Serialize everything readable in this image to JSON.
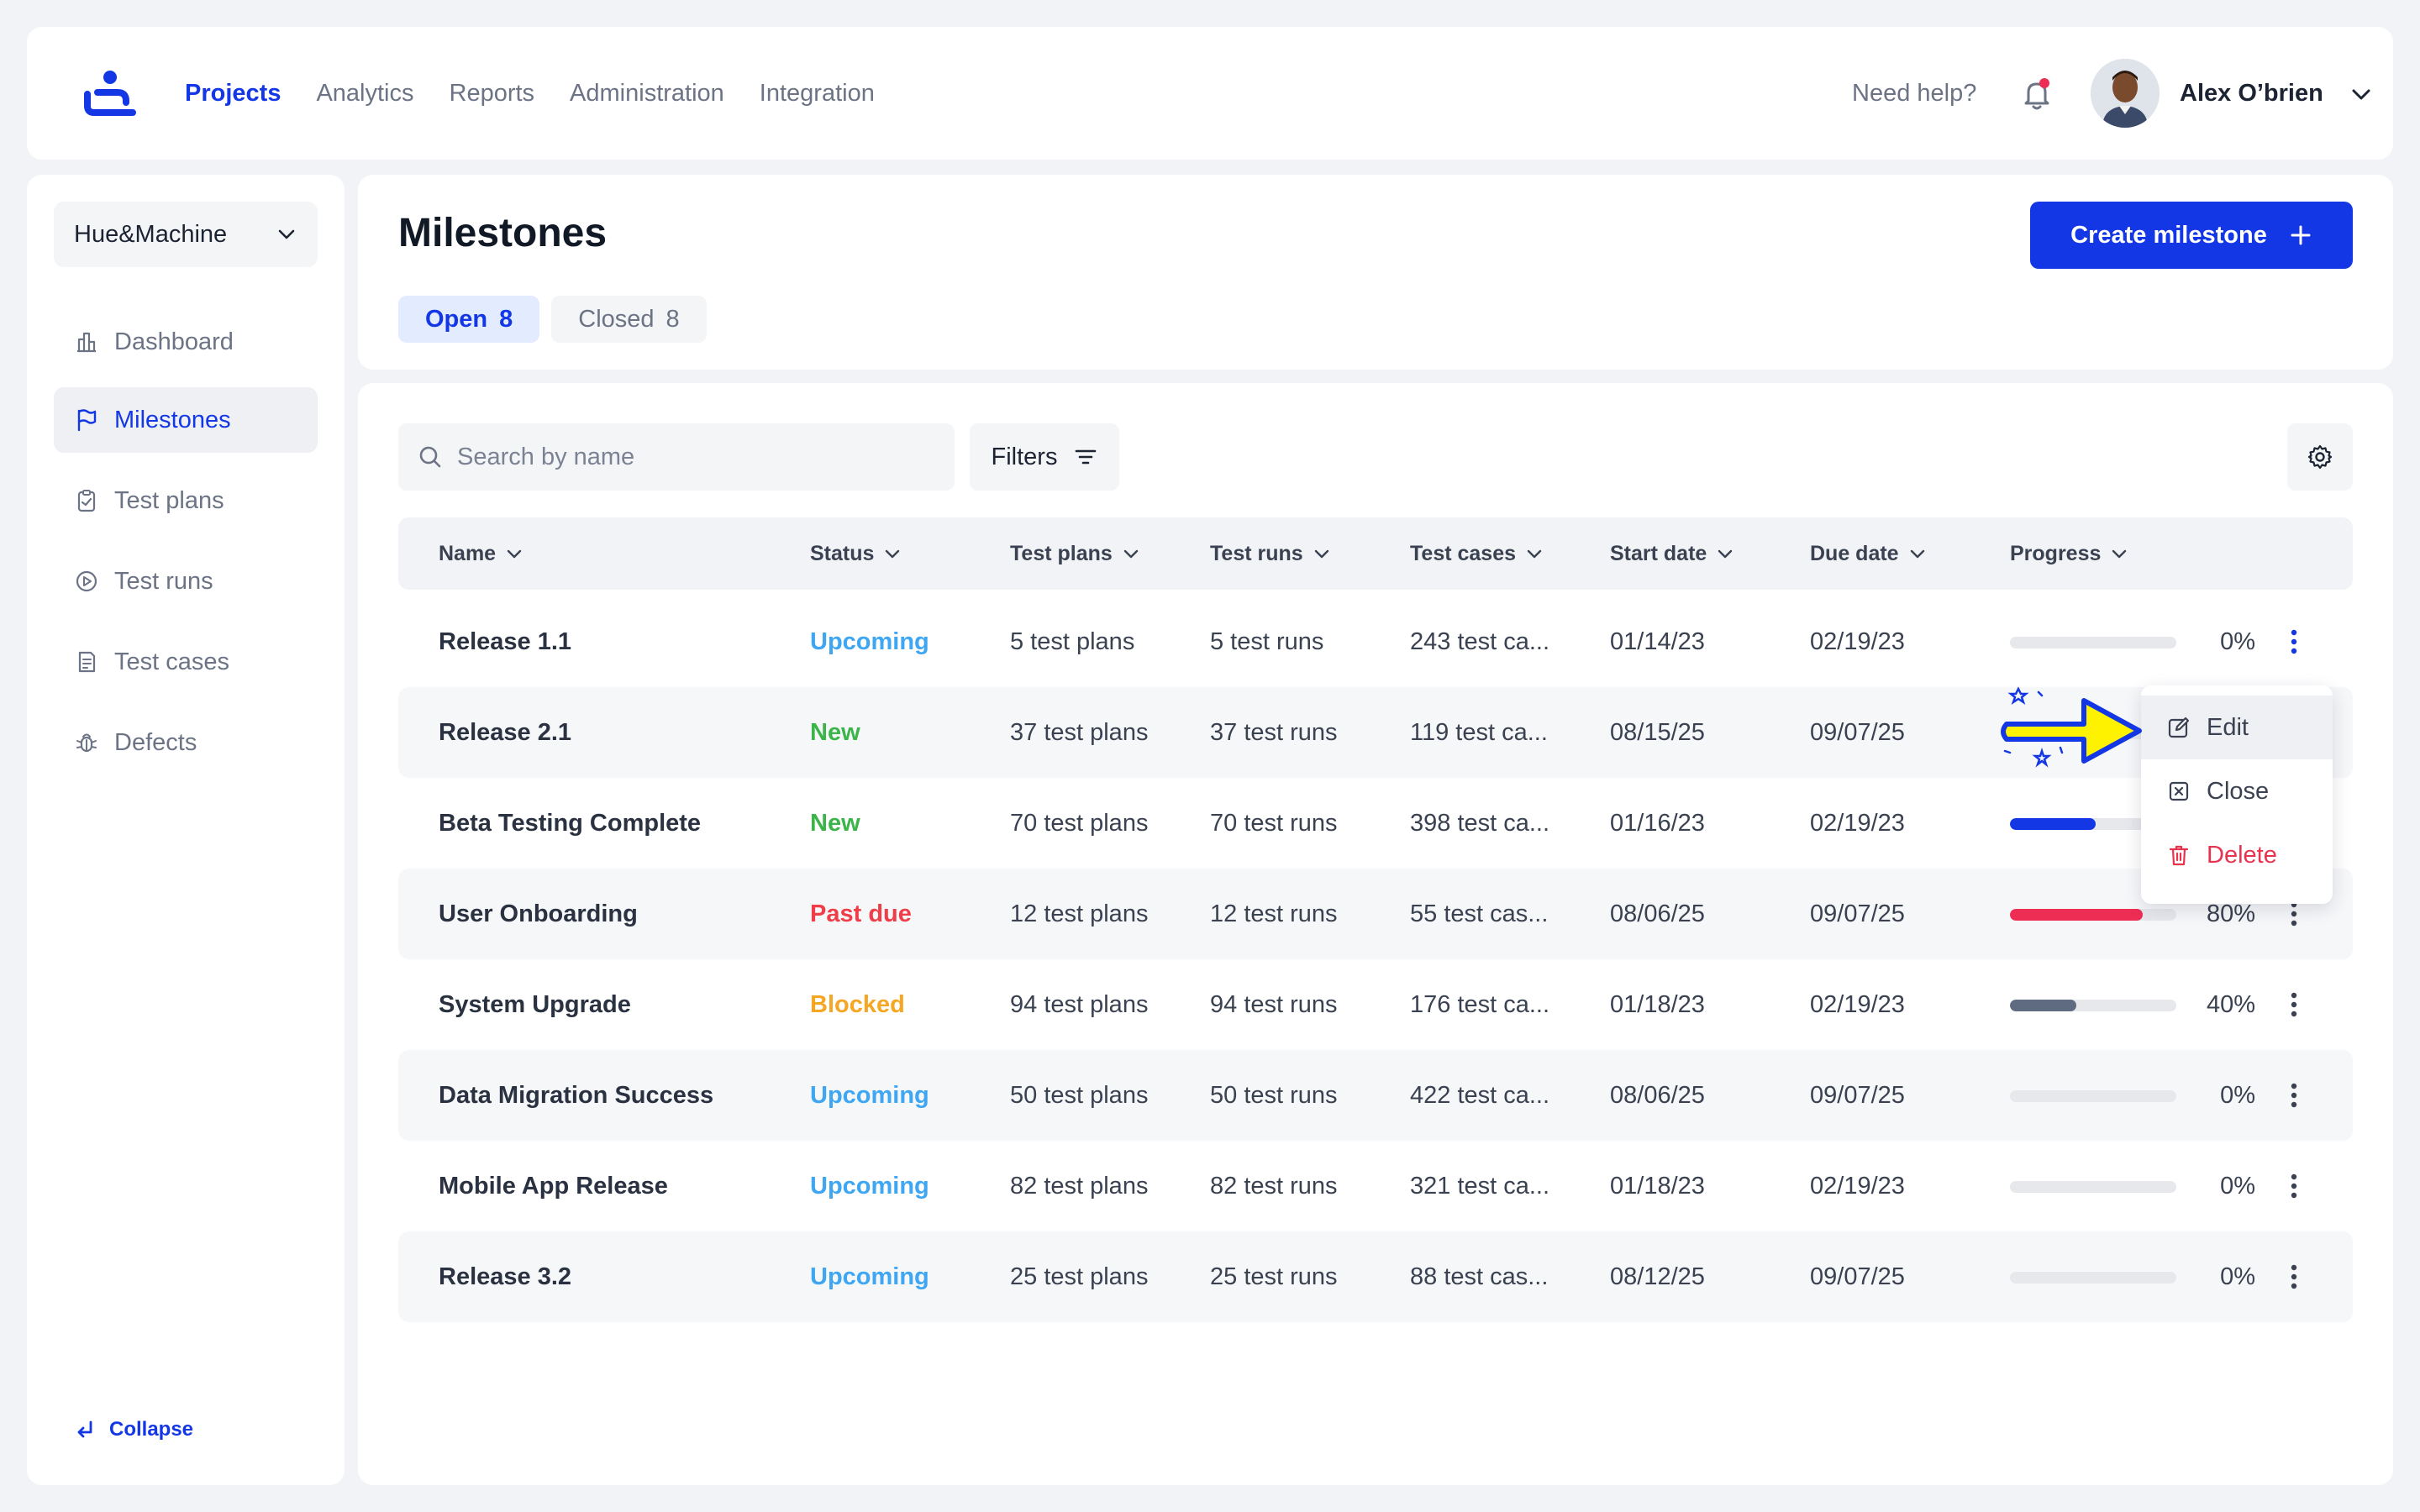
{
  "topbar": {
    "nav": [
      "Projects",
      "Analytics",
      "Reports",
      "Administration",
      "Integration"
    ],
    "active_nav": "Projects",
    "help": "Need help?",
    "user_name": "Alex O’brien"
  },
  "sidebar": {
    "workspace": "Hue&Machine",
    "items": [
      {
        "label": "Dashboard",
        "icon": "dashboard-icon"
      },
      {
        "label": "Milestones",
        "icon": "flag-icon"
      },
      {
        "label": "Test plans",
        "icon": "clipboard-icon"
      },
      {
        "label": "Test runs",
        "icon": "play-circle-icon"
      },
      {
        "label": "Test cases",
        "icon": "document-icon"
      },
      {
        "label": "Defects",
        "icon": "bug-icon"
      }
    ],
    "active_item": "Milestones",
    "collapse": "Collapse"
  },
  "header": {
    "title": "Milestones",
    "tabs": [
      {
        "label": "Open",
        "count": "8"
      },
      {
        "label": "Closed",
        "count": "8"
      }
    ],
    "create_label": "Create milestone"
  },
  "toolbar": {
    "search_placeholder": "Search by name",
    "filters_label": "Filters"
  },
  "table": {
    "columns": [
      "Name",
      "Status",
      "Test plans",
      "Test runs",
      "Test cases",
      "Start date",
      "Due date",
      "Progress"
    ],
    "rows": [
      {
        "name": "Release 1.1",
        "status": "Upcoming",
        "plans": "5 test plans",
        "runs": "5 test runs",
        "cases": "243 test ca...",
        "start": "01/14/23",
        "due": "02/19/23",
        "progress": 0,
        "progress_label": "0%"
      },
      {
        "name": "Release 2.1",
        "status": "New",
        "plans": "37 test plans",
        "runs": "37 test runs",
        "cases": "119 test ca...",
        "start": "08/15/25",
        "due": "09/07/25",
        "progress": 0,
        "progress_label": ""
      },
      {
        "name": "Beta Testing Complete",
        "status": "New",
        "plans": "70 test plans",
        "runs": "70 test runs",
        "cases": "398 test ca...",
        "start": "01/16/23",
        "due": "02/19/23",
        "progress": 60,
        "progress_label": ""
      },
      {
        "name": "User Onboarding",
        "status": "Past due",
        "plans": "12 test plans",
        "runs": "12 test runs",
        "cases": "55 test cas...",
        "start": "08/06/25",
        "due": "09/07/25",
        "progress": 80,
        "progress_label": "80%"
      },
      {
        "name": "System Upgrade",
        "status": "Blocked",
        "plans": "94 test plans",
        "runs": "94 test runs",
        "cases": "176 test ca...",
        "start": "01/18/23",
        "due": "02/19/23",
        "progress": 40,
        "progress_label": "40%"
      },
      {
        "name": "Data Migration Success",
        "status": "Upcoming",
        "plans": "50 test plans",
        "runs": "50 test runs",
        "cases": "422 test ca...",
        "start": "08/06/25",
        "due": "09/07/25",
        "progress": 0,
        "progress_label": "0%"
      },
      {
        "name": "Mobile App Release",
        "status": "Upcoming",
        "plans": "82 test plans",
        "runs": "82 test runs",
        "cases": "321 test ca...",
        "start": "01/18/23",
        "due": "02/19/23",
        "progress": 0,
        "progress_label": "0%"
      },
      {
        "name": "Release 3.2",
        "status": "Upcoming",
        "plans": "25 test plans",
        "runs": "25 test runs",
        "cases": "88 test cas...",
        "start": "08/12/25",
        "due": "09/07/25",
        "progress": 0,
        "progress_label": "0%"
      }
    ]
  },
  "status_colors": {
    "Upcoming": "#3ea6f2",
    "New": "#3bb54a",
    "Past due": "#ef3e4a",
    "Blocked": "#f5a623"
  },
  "progress_colors": {
    "Beta Testing Complete": "#1437e6",
    "User Onboarding": "#ee2d55",
    "System Upgrade": "#5f6b80"
  },
  "row_menu": {
    "items": [
      {
        "label": "Edit",
        "icon": "edit-icon"
      },
      {
        "label": "Close",
        "icon": "close-box-icon"
      },
      {
        "label": "Delete",
        "icon": "trash-icon"
      }
    ]
  },
  "colors": {
    "accent": "#1437e6",
    "background": "#f1f3f6",
    "danger": "#e8334f",
    "pointer": "#fff200"
  }
}
